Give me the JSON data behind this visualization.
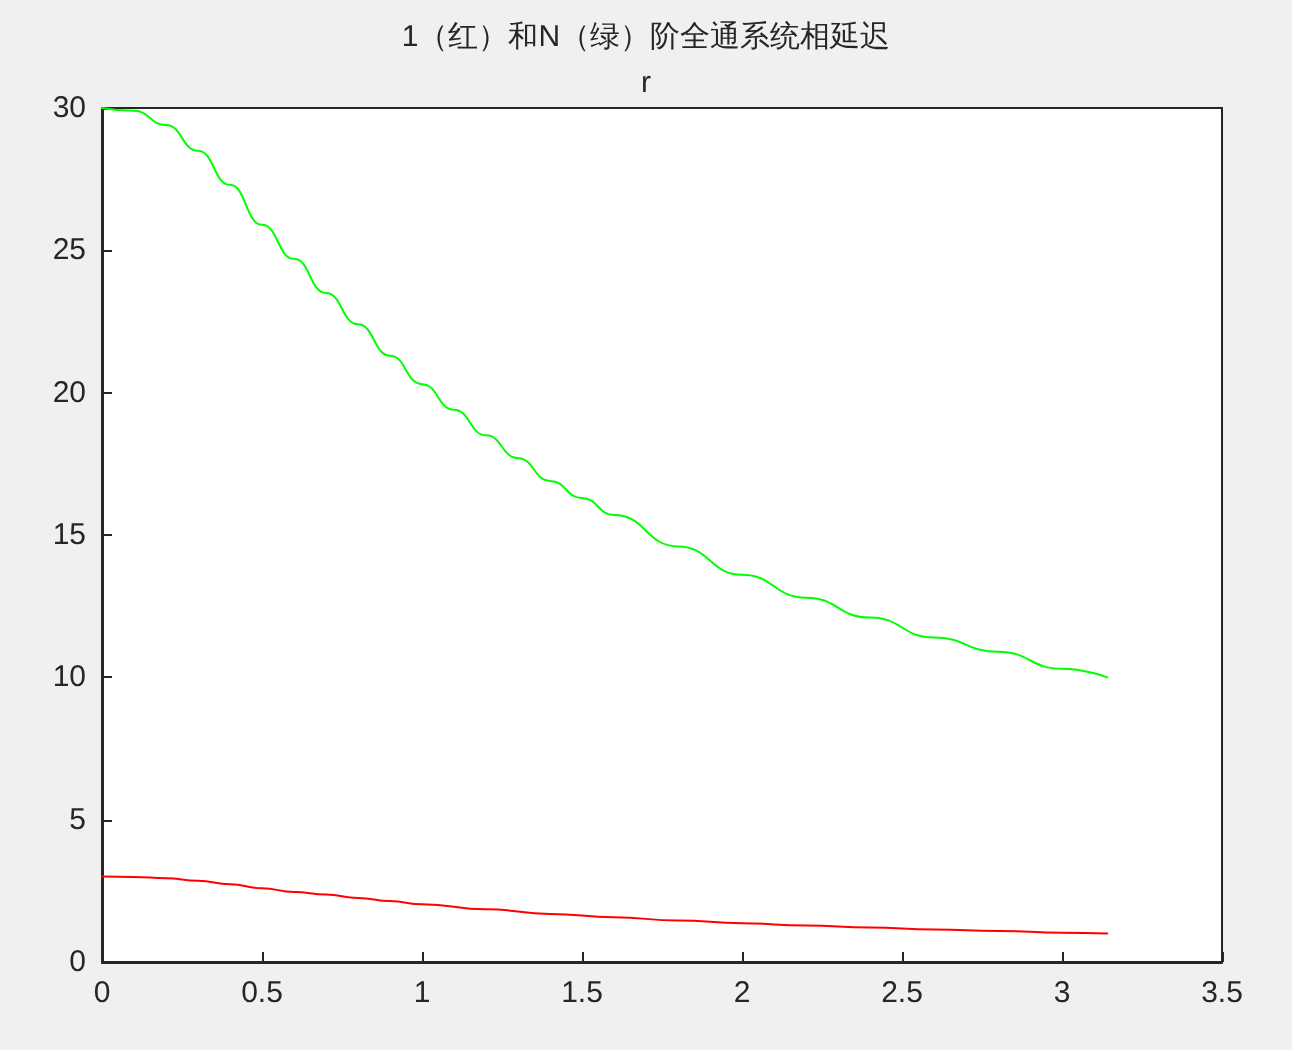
{
  "chart_data": {
    "type": "line",
    "title": "1（红）和N（绿）阶全通系统相延迟",
    "subtitle": "r",
    "xlim": [
      0,
      3.5
    ],
    "xticks": [
      0,
      0.5,
      1,
      1.5,
      2,
      2.5,
      3,
      3.5
    ],
    "ylim": [
      0,
      30
    ],
    "yticks": [
      0,
      5,
      10,
      15,
      20,
      25,
      30
    ],
    "grid": false,
    "marker": "none",
    "line_style": "solid",
    "series": [
      {
        "color": "#ff0000",
        "x": [
          0,
          0.1,
          0.2,
          0.3,
          0.4,
          0.5,
          0.6,
          0.7,
          0.8,
          0.9,
          1,
          1.2,
          1.4,
          1.6,
          1.8,
          2,
          2.2,
          2.4,
          2.6,
          2.8,
          3,
          3.1416
        ],
        "values": [
          3,
          2.99,
          2.94,
          2.85,
          2.73,
          2.59,
          2.46,
          2.37,
          2.25,
          2.14,
          2.03,
          1.85,
          1.69,
          1.57,
          1.46,
          1.36,
          1.28,
          1.21,
          1.14,
          1.09,
          1.03,
          1
        ]
      },
      {
        "color": "#00ff00",
        "x": [
          0,
          0.1,
          0.2,
          0.3,
          0.4,
          0.5,
          0.6,
          0.7,
          0.8,
          0.9,
          1,
          1.1,
          1.2,
          1.3,
          1.4,
          1.5,
          1.6,
          1.8,
          2,
          2.2,
          2.4,
          2.6,
          2.8,
          3,
          3.1416
        ],
        "values": [
          30,
          29.9,
          29.4,
          28.5,
          27.3,
          25.9,
          24.7,
          23.5,
          22.4,
          21.3,
          20.3,
          19.4,
          18.5,
          17.7,
          16.9,
          16.3,
          15.7,
          14.6,
          13.6,
          12.8,
          12.1,
          11.4,
          10.9,
          10.3,
          10
        ]
      }
    ]
  }
}
